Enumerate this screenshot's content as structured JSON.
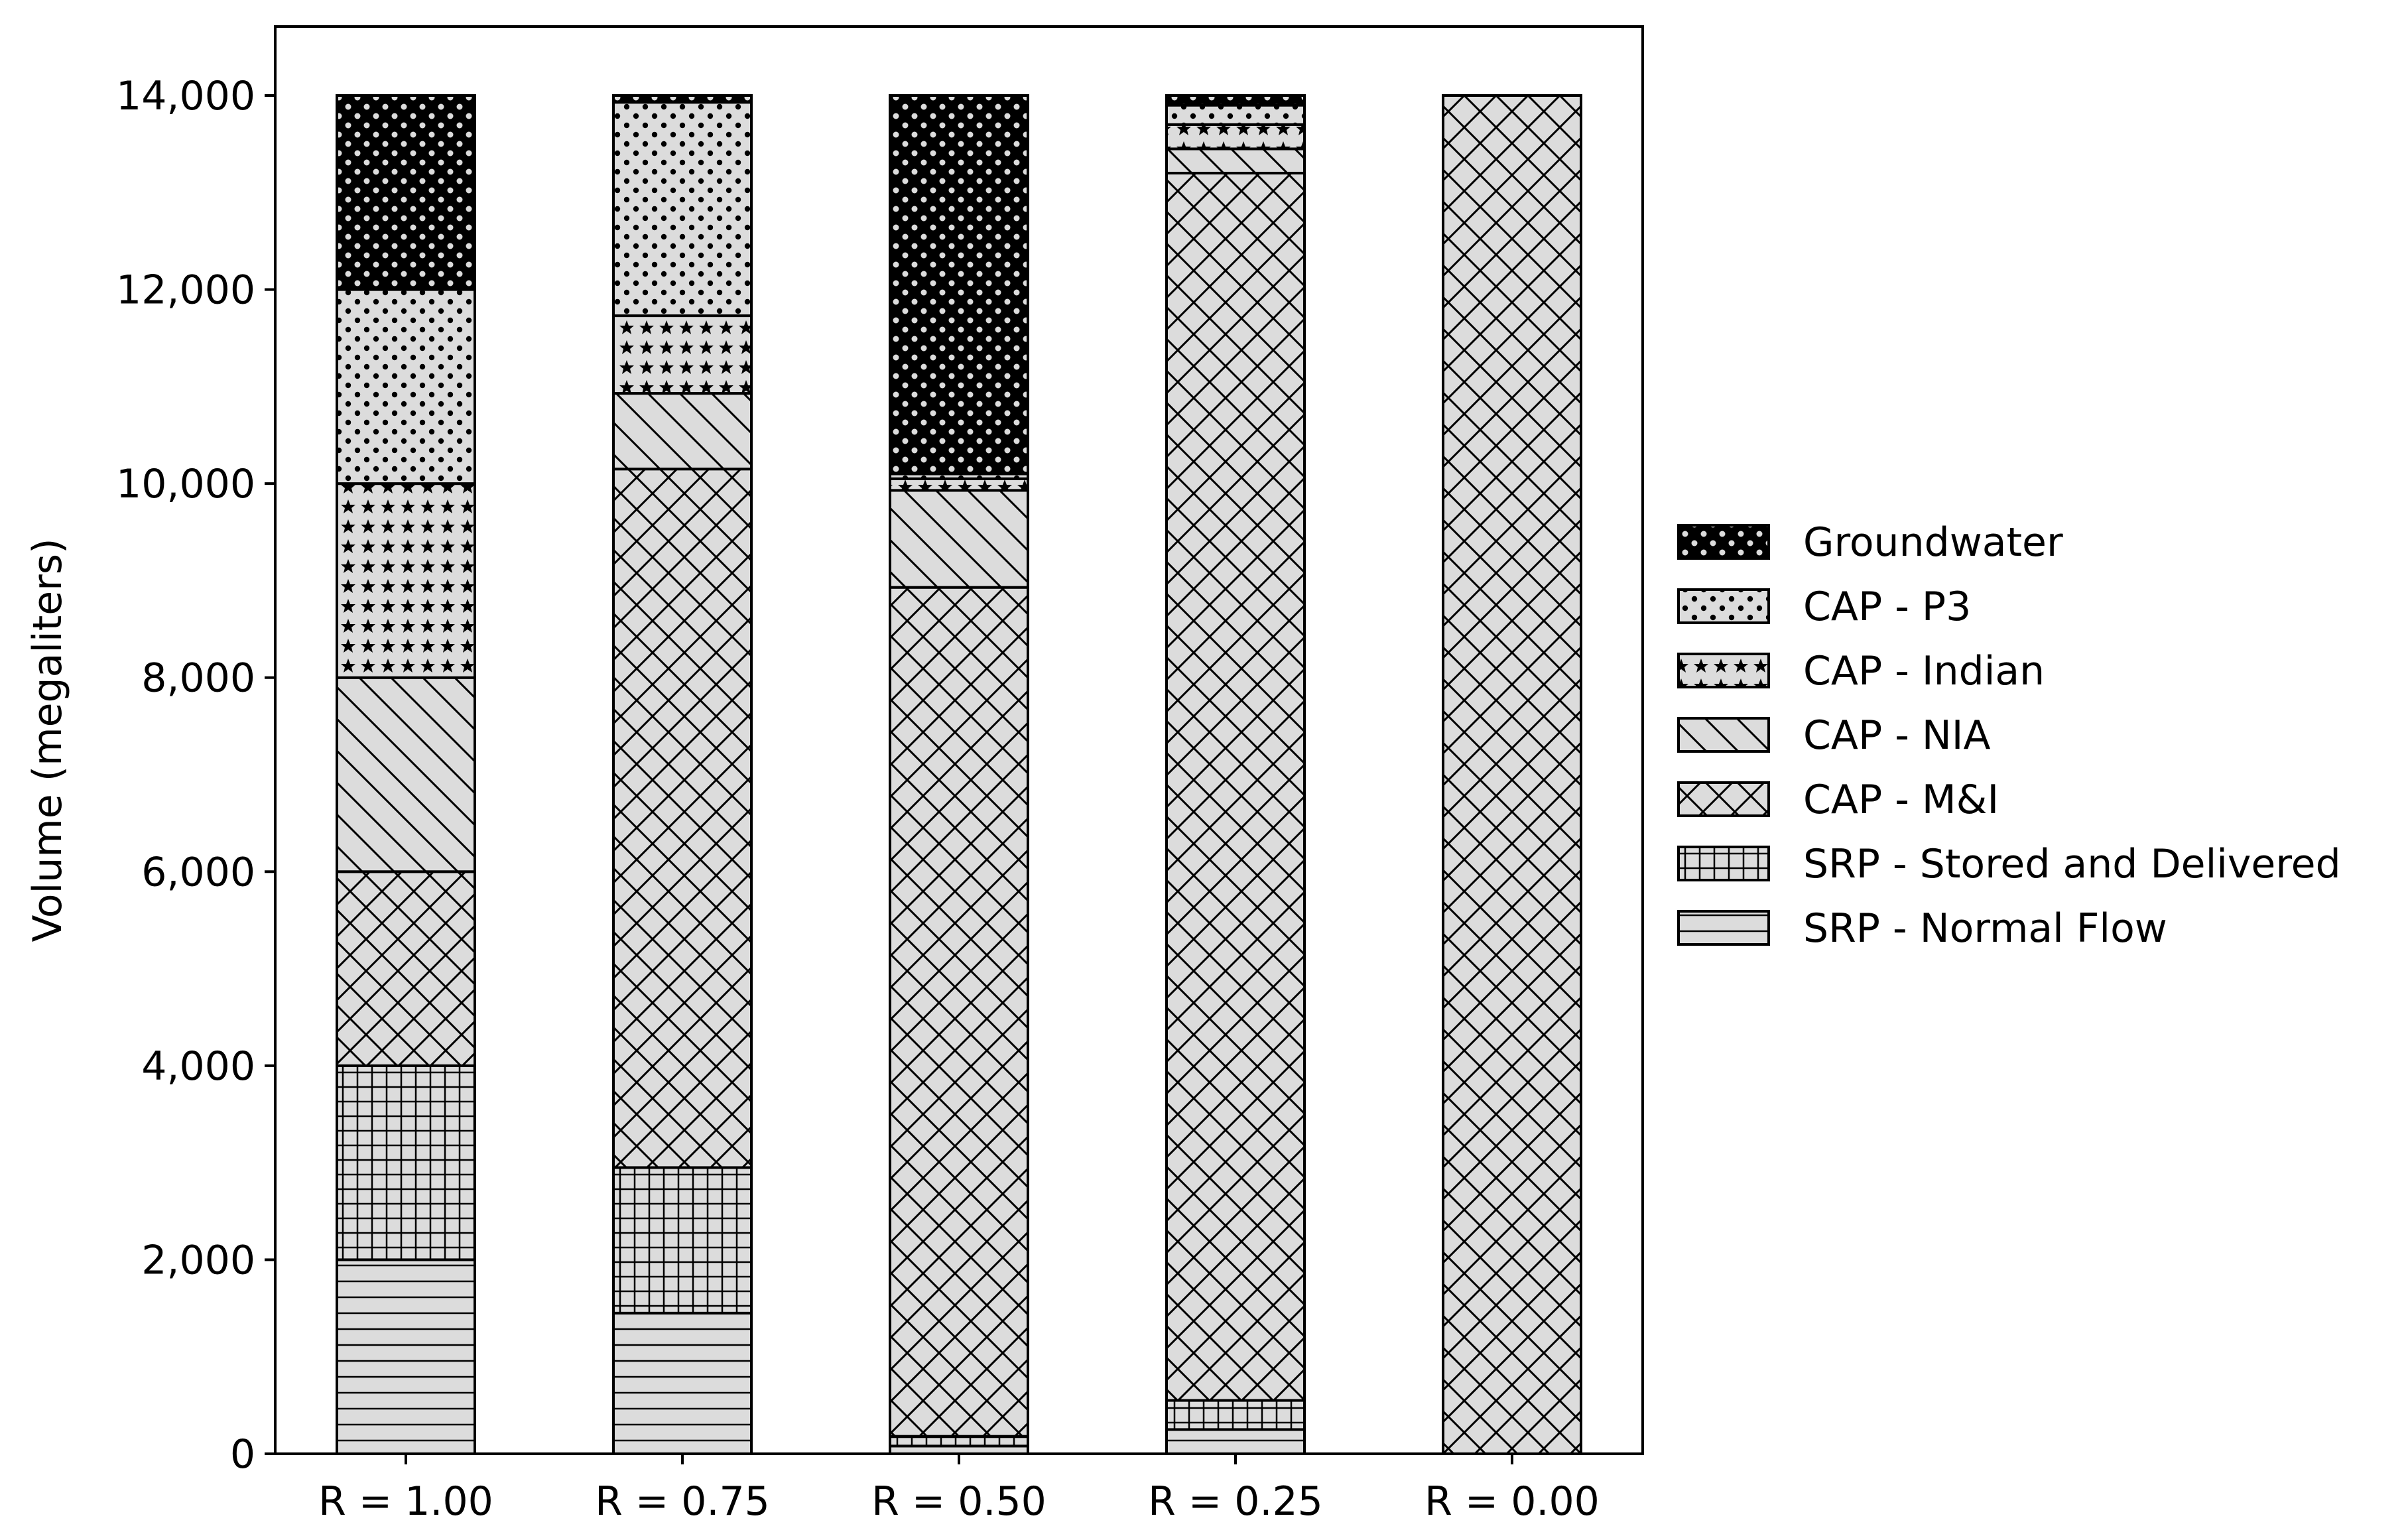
{
  "colors": {
    "fill": "#dcdcdc",
    "stroke": "#000000",
    "background": "#ffffff"
  },
  "chart_data": {
    "type": "bar",
    "stacked": true,
    "title": "",
    "xlabel": "",
    "ylabel": "Volume (megaliters)",
    "ylim": [
      0,
      14000
    ],
    "yticks": [
      0,
      2000,
      4000,
      6000,
      8000,
      10000,
      12000,
      14000
    ],
    "ytick_labels": [
      "0",
      "2,000",
      "4,000",
      "6,000",
      "8,000",
      "10,000",
      "12,000",
      "14,000"
    ],
    "categories": [
      "R = 1.00",
      "R = 0.75",
      "R = 0.50",
      "R = 0.25",
      "R = 0.00"
    ],
    "grid": false,
    "legend_position": "right",
    "series": [
      {
        "name": "SRP - Normal Flow",
        "pattern": "horizontal",
        "values": [
          2000,
          1450,
          80,
          250,
          0
        ]
      },
      {
        "name": "SRP - Stored and Delivered",
        "pattern": "grid",
        "values": [
          2000,
          1500,
          100,
          300,
          0
        ]
      },
      {
        "name": "CAP - M&I",
        "pattern": "crosshatch",
        "values": [
          2000,
          7200,
          8750,
          12650,
          14000
        ]
      },
      {
        "name": "CAP - NIA",
        "pattern": "diagonal",
        "values": [
          2000,
          780,
          1000,
          250,
          0
        ]
      },
      {
        "name": "CAP - Indian",
        "pattern": "stars",
        "values": [
          2000,
          800,
          120,
          250,
          0
        ]
      },
      {
        "name": "CAP - P3",
        "pattern": "dots",
        "values": [
          2000,
          2200,
          50,
          200,
          0
        ]
      },
      {
        "name": "Groundwater",
        "pattern": "rings",
        "values": [
          2000,
          70,
          3900,
          100,
          0
        ]
      }
    ],
    "legend_order": [
      "Groundwater",
      "CAP - P3",
      "CAP - Indian",
      "CAP - NIA",
      "CAP - M&I",
      "SRP - Stored and Delivered",
      "SRP - Normal Flow"
    ]
  }
}
